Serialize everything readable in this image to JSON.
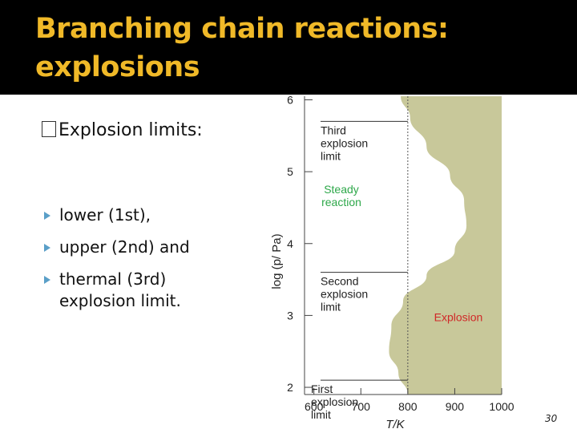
{
  "slide": {
    "title_line1": "Branching chain reactions:",
    "title_line2": "explosions",
    "heading": "Explosion limits:",
    "bullets": [
      {
        "text": "lower (1st),"
      },
      {
        "text": "upper (2nd) and"
      },
      {
        "text": "thermal (3rd)",
        "continuation": "explosion limit."
      }
    ],
    "page_number": "30"
  },
  "colors": {
    "title": "#f0b928",
    "title_bar": "#000000",
    "bullet": "#5a9fc8",
    "explosion_region": "#c8c89a",
    "steady_label": "#2ea84a",
    "explosion_label": "#d02828"
  },
  "chart_data": {
    "type": "area",
    "xlabel": "T/K",
    "ylabel": "log (p/ Pa)",
    "x_ticks": [
      "600",
      "700",
      "800",
      "900",
      "1000"
    ],
    "y_ticks": [
      "2",
      "3",
      "4",
      "5",
      "6"
    ],
    "xlim": [
      580,
      1000
    ],
    "ylim": [
      1.9,
      6.05
    ],
    "reference_line_x": 800,
    "boundary": [
      {
        "x": 800,
        "y": 1.9
      },
      {
        "x": 780,
        "y": 2.2
      },
      {
        "x": 760,
        "y": 2.5
      },
      {
        "x": 765,
        "y": 2.85
      },
      {
        "x": 790,
        "y": 3.2
      },
      {
        "x": 840,
        "y": 3.55
      },
      {
        "x": 900,
        "y": 3.9
      },
      {
        "x": 925,
        "y": 4.25
      },
      {
        "x": 920,
        "y": 4.6
      },
      {
        "x": 890,
        "y": 4.95
      },
      {
        "x": 840,
        "y": 5.35
      },
      {
        "x": 805,
        "y": 5.75
      },
      {
        "x": 785,
        "y": 6.05
      }
    ],
    "annotations": [
      {
        "label": [
          "Third",
          "explosion",
          "limit"
        ],
        "kind": "callout",
        "y": 5.7
      },
      {
        "label": [
          "Steady",
          "reaction"
        ],
        "kind": "region"
      },
      {
        "label": [
          "Second",
          "explosion",
          "limit"
        ],
        "kind": "callout",
        "y": 3.6
      },
      {
        "label": [
          "Explosion"
        ],
        "kind": "region"
      },
      {
        "label": [
          "First",
          "explosion",
          "limit"
        ],
        "kind": "callout",
        "y": 2.1
      }
    ]
  }
}
